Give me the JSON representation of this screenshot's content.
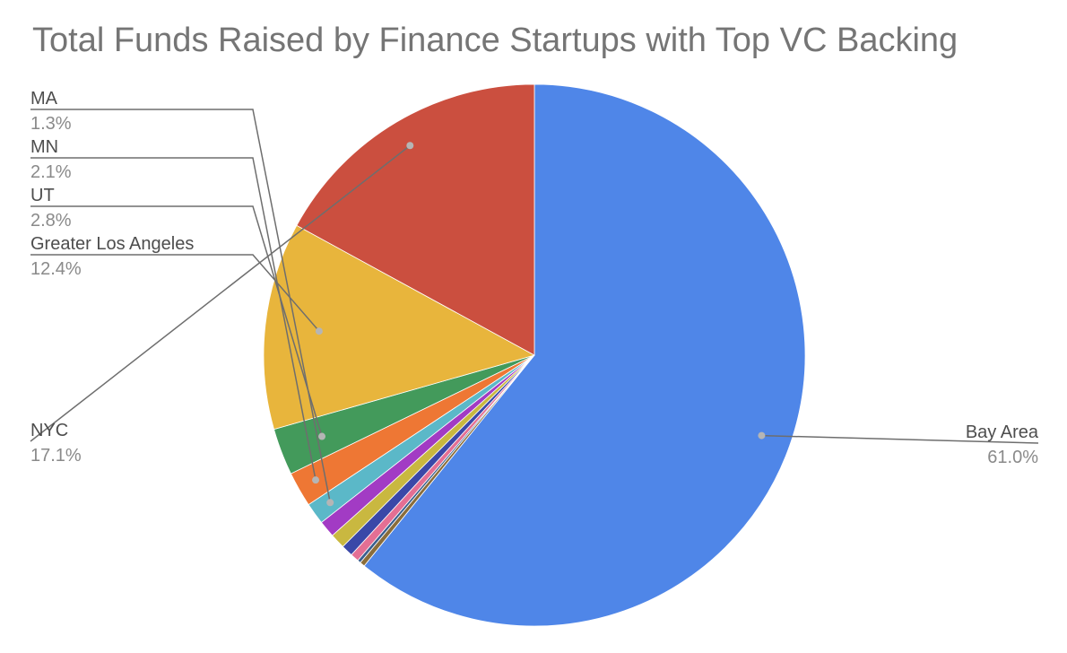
{
  "chart_data": {
    "type": "pie",
    "title": "Total Funds Raised by Finance Startups with Top VC Backing",
    "slices": [
      {
        "label": "Bay Area",
        "percent": "61.0%",
        "value": 61.0,
        "color": "#4f86e8"
      },
      {
        "label": "",
        "value": 0.3,
        "color": "#8a6d3b"
      },
      {
        "label": "",
        "value": 0.2,
        "color": "#3a5f8f"
      },
      {
        "label": "",
        "value": 0.5,
        "color": "#e46f94"
      },
      {
        "label": "",
        "value": 0.7,
        "color": "#3a48a8"
      },
      {
        "label": "",
        "value": 0.9,
        "color": "#c9b840"
      },
      {
        "label": "",
        "value": 1.0,
        "color": "#a23bc4"
      },
      {
        "label": "MA",
        "percent": "1.3%",
        "value": 1.3,
        "color": "#5bb8c8"
      },
      {
        "label": "MN",
        "percent": "2.1%",
        "value": 2.1,
        "color": "#ee7734"
      },
      {
        "label": "UT",
        "percent": "2.8%",
        "value": 2.8,
        "color": "#439a5b"
      },
      {
        "label": "Greater Los Angeles",
        "percent": "12.4%",
        "value": 12.4,
        "color": "#e8b53c"
      },
      {
        "label": "NYC",
        "percent": "17.1%",
        "value": 17.1,
        "color": "#cb4f3f"
      }
    ],
    "legend": "none"
  }
}
